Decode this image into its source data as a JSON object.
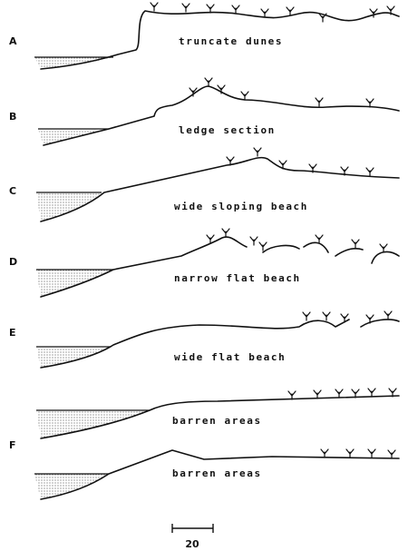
{
  "profiles": [
    {
      "letter": "A",
      "caption": "truncate dunes"
    },
    {
      "letter": "B",
      "caption": "ledge section"
    },
    {
      "letter": "C",
      "caption": "wide sloping beach"
    },
    {
      "letter": "D",
      "caption": "narrow flat beach"
    },
    {
      "letter": "E",
      "caption": "wide flat beach"
    },
    {
      "caption": "barren areas"
    },
    {
      "letter": "F",
      "caption": "barren areas"
    }
  ],
  "scale_bar": {
    "label": "20"
  }
}
